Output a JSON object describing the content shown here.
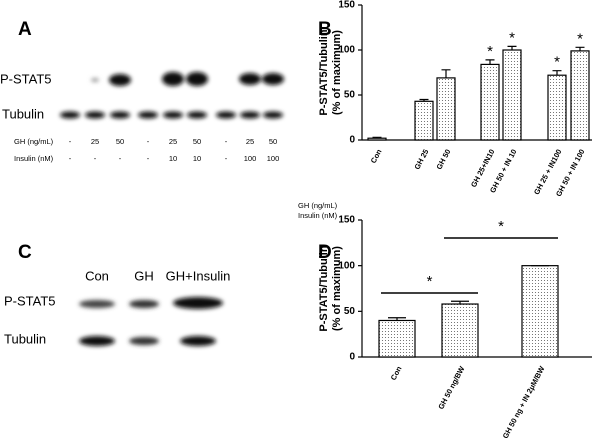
{
  "panel_labels": [
    "A",
    "B",
    "C",
    "D"
  ],
  "blot_a": {
    "rows": [
      "P-STAT5",
      "Tubulin"
    ],
    "conditions": [
      {
        "name": "GH (ng/mL)",
        "lanes": [
          "-",
          "25",
          "50",
          "-",
          "25",
          "50",
          "-",
          "25",
          "50"
        ]
      },
      {
        "name": "Insulin (nM)",
        "lanes": [
          "-",
          "-",
          "-",
          "-",
          "10",
          "10",
          "-",
          "100",
          "100"
        ]
      }
    ]
  },
  "blot_c": {
    "lanes": [
      "Con",
      "GH",
      "GH+Insulin"
    ],
    "rows": [
      "P-STAT5",
      "Tubulin"
    ]
  },
  "chart_data": [
    {
      "type": "bar",
      "ylabel": [
        "P-STAT5/Tubulin",
        "(% of maximum)"
      ],
      "xlabel": [
        "GH (ng/mL)",
        "Insulin (nM)"
      ],
      "categories": [
        "Con",
        "GH 25",
        "GH 50",
        "GH 25+IN10",
        "GH 50 + IN 10",
        "GH 25 + IN100",
        "GH 50 + IN 100"
      ],
      "values": [
        2,
        43,
        69,
        84,
        100,
        72,
        99
      ],
      "errors": [
        1,
        2,
        9,
        5,
        4,
        5,
        4
      ],
      "annotations": [
        null,
        null,
        null,
        "*",
        "*",
        "*",
        "*"
      ],
      "ylim": [
        0,
        150
      ],
      "yticks": [
        0,
        50,
        100,
        150
      ]
    },
    {
      "type": "bar",
      "ylabel": [
        "P-STAT5/Tubulin",
        "(% of maximum)"
      ],
      "categories": [
        "Con",
        "GH 50 ng/BW",
        "GH 50 ng + IN 2μM/BW"
      ],
      "values": [
        40,
        58,
        100
      ],
      "errors": [
        3,
        3,
        0
      ],
      "comparisons": [
        {
          "categories": [
            0,
            1
          ],
          "text": "*"
        },
        {
          "categories": [
            1,
            2
          ],
          "text": "*"
        }
      ],
      "ylim": [
        0,
        150
      ],
      "yticks": [
        0,
        50,
        100,
        150
      ]
    }
  ]
}
